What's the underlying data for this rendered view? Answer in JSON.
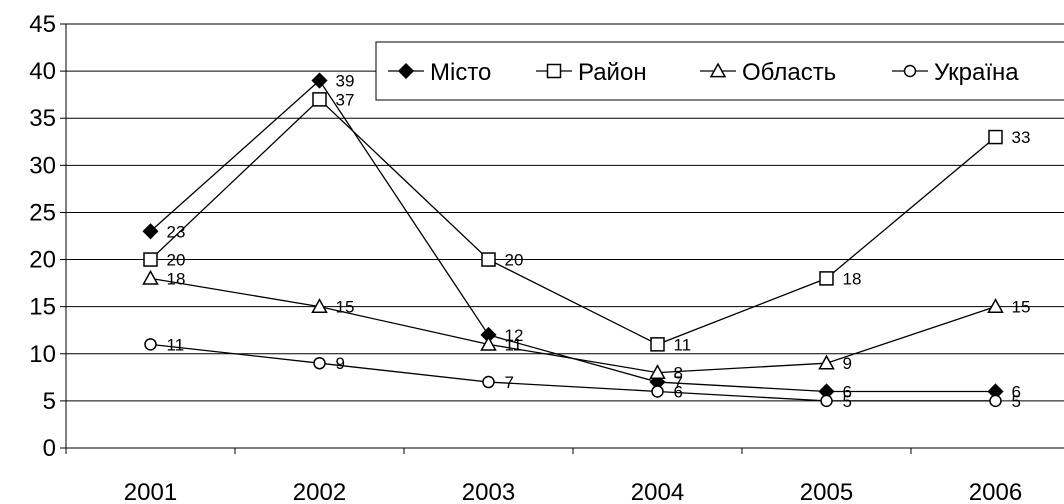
{
  "chart_data": {
    "type": "line",
    "categories": [
      "2001",
      "2002",
      "2003",
      "2004",
      "2005",
      "2006"
    ],
    "ylim": [
      0,
      45
    ],
    "yticks": [
      "0",
      "5",
      "10",
      "15",
      "20",
      "25",
      "30",
      "35",
      "40",
      "45"
    ],
    "grid": "horizontal",
    "legend_position": "top-right",
    "series": [
      {
        "name": "Місто",
        "marker": "diamond",
        "fill": "#000000",
        "values": [
          23,
          39,
          12,
          7,
          6,
          6
        ],
        "labels": [
          "23",
          "39",
          "12",
          "7",
          "6",
          "6"
        ]
      },
      {
        "name": "Район",
        "marker": "square",
        "fill": "#ffffff",
        "values": [
          20,
          37,
          20,
          11,
          18,
          33
        ],
        "labels": [
          "20",
          "37",
          "20",
          "11",
          "18",
          "33"
        ]
      },
      {
        "name": "Область",
        "marker": "triangle",
        "fill": "#ffffff",
        "values": [
          18,
          15,
          11,
          8,
          9,
          15
        ],
        "labels": [
          "18",
          "15",
          "11",
          "8",
          "9",
          "15"
        ]
      },
      {
        "name": "Україна",
        "marker": "circle",
        "fill": "#ffffff",
        "values": [
          11,
          9,
          7,
          6,
          5,
          5
        ],
        "labels": [
          "11",
          "9",
          "7",
          "6",
          "5",
          "5"
        ]
      }
    ]
  }
}
